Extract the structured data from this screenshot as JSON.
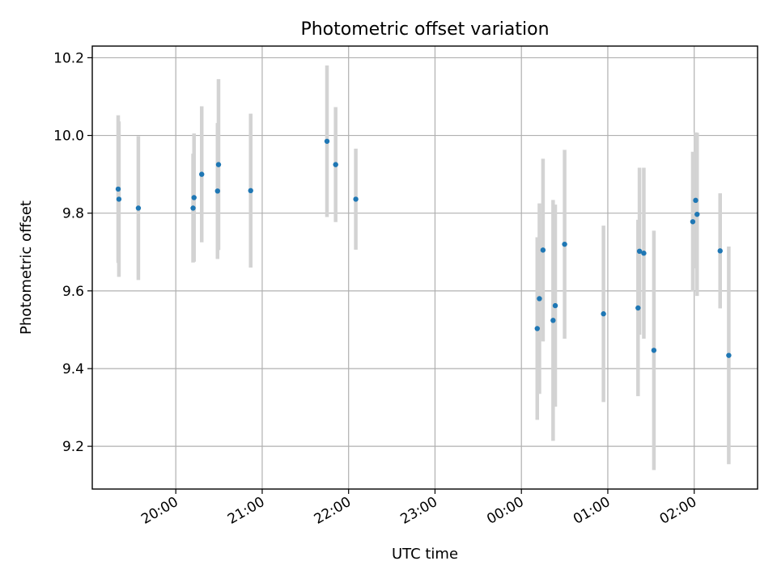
{
  "chart_data": {
    "type": "scatter",
    "title": "Photometric offset variation",
    "xlabel": "UTC time",
    "ylabel": "Photometric offset",
    "xlim": [
      "2000-01-01T19:02:00",
      "2000-01-02T02:44:00"
    ],
    "ylim": [
      9.09,
      10.23
    ],
    "x_ticks": [
      {
        "x": "2000-01-01T20:00:00",
        "label": "20:00"
      },
      {
        "x": "2000-01-01T21:00:00",
        "label": "21:00"
      },
      {
        "x": "2000-01-01T22:00:00",
        "label": "22:00"
      },
      {
        "x": "2000-01-01T23:00:00",
        "label": "23:00"
      },
      {
        "x": "2000-01-02T00:00:00",
        "label": "00:00"
      },
      {
        "x": "2000-01-02T01:00:00",
        "label": "01:00"
      },
      {
        "x": "2000-01-02T02:00:00",
        "label": "02:00"
      }
    ],
    "y_ticks": [
      {
        "y": 9.2,
        "label": "9.2"
      },
      {
        "y": 9.4,
        "label": "9.4"
      },
      {
        "y": 9.6,
        "label": "9.6"
      },
      {
        "y": 9.8,
        "label": "9.8"
      },
      {
        "y": 10.0,
        "label": "10.0"
      },
      {
        "y": 10.2,
        "label": "10.2"
      }
    ],
    "grid": true,
    "marker_color": "#1f77b4",
    "errorbar_color": "#d3d3d3",
    "points": [
      {
        "x": "2000-01-01T19:20:00",
        "y": 9.862,
        "yerr": 0.19
      },
      {
        "x": "2000-01-01T19:20:30",
        "y": 9.836,
        "yerr": 0.2
      },
      {
        "x": "2000-01-01T19:34:00",
        "y": 9.813,
        "yerr": 0.185
      },
      {
        "x": "2000-01-01T20:12:00",
        "y": 9.813,
        "yerr": 0.14
      },
      {
        "x": "2000-01-01T20:12:40",
        "y": 9.84,
        "yerr": 0.165
      },
      {
        "x": "2000-01-01T20:18:00",
        "y": 9.9,
        "yerr": 0.175
      },
      {
        "x": "2000-01-01T20:29:00",
        "y": 9.857,
        "yerr": 0.175
      },
      {
        "x": "2000-01-01T20:29:40",
        "y": 9.925,
        "yerr": 0.22
      },
      {
        "x": "2000-01-01T20:52:00",
        "y": 9.858,
        "yerr": 0.198
      },
      {
        "x": "2000-01-01T21:45:00",
        "y": 9.985,
        "yerr": 0.195
      },
      {
        "x": "2000-01-01T21:51:00",
        "y": 9.925,
        "yerr": 0.148
      },
      {
        "x": "2000-01-01T22:05:00",
        "y": 9.836,
        "yerr": 0.13
      },
      {
        "x": "2000-01-02T00:11:00",
        "y": 9.503,
        "yerr": 0.235
      },
      {
        "x": "2000-01-02T00:12:30",
        "y": 9.58,
        "yerr": 0.245
      },
      {
        "x": "2000-01-02T00:15:00",
        "y": 9.705,
        "yerr": 0.235
      },
      {
        "x": "2000-01-02T00:22:00",
        "y": 9.524,
        "yerr": 0.31
      },
      {
        "x": "2000-01-02T00:23:30",
        "y": 9.562,
        "yerr": 0.26
      },
      {
        "x": "2000-01-02T00:30:00",
        "y": 9.72,
        "yerr": 0.243
      },
      {
        "x": "2000-01-02T00:57:00",
        "y": 9.541,
        "yerr": 0.227
      },
      {
        "x": "2000-01-02T01:21:00",
        "y": 9.556,
        "yerr": 0.227
      },
      {
        "x": "2000-01-02T01:22:00",
        "y": 9.702,
        "yerr": 0.215
      },
      {
        "x": "2000-01-02T01:25:00",
        "y": 9.697,
        "yerr": 0.22
      },
      {
        "x": "2000-01-02T01:32:00",
        "y": 9.447,
        "yerr": 0.308
      },
      {
        "x": "2000-01-02T01:59:00",
        "y": 9.778,
        "yerr": 0.18
      },
      {
        "x": "2000-01-02T02:01:00",
        "y": 9.833,
        "yerr": 0.175
      },
      {
        "x": "2000-01-02T02:02:00",
        "y": 9.797,
        "yerr": 0.21
      },
      {
        "x": "2000-01-02T02:18:00",
        "y": 9.703,
        "yerr": 0.148
      },
      {
        "x": "2000-01-02T02:24:00",
        "y": 9.434,
        "yerr": 0.28
      }
    ]
  }
}
